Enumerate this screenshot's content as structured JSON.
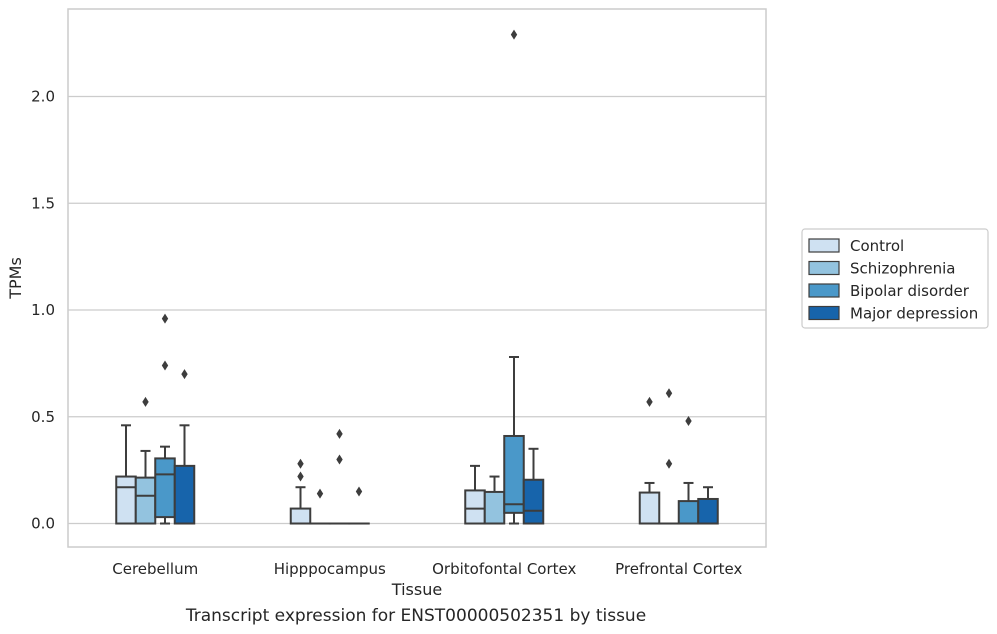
{
  "caption": "Transcript expression for ENST00000502351 by tissue",
  "chart_data": {
    "type": "box",
    "title": "",
    "xlabel": "Tissue",
    "ylabel": "TPMs",
    "ylim": [
      -0.11,
      2.41
    ],
    "yticks": [
      0.0,
      0.5,
      1.0,
      1.5,
      2.0
    ],
    "ytick_labels": [
      "0.0",
      "0.5",
      "1.0",
      "1.5",
      "2.0"
    ],
    "grid": "horizontal",
    "legend": {
      "placement": "right",
      "entries": [
        "Control",
        "Schizophrenia",
        "Bipolar disorder",
        "Major depression"
      ]
    },
    "colors": [
      "#cfe1f2",
      "#93c3df",
      "#4a98c9",
      "#1764ab"
    ],
    "categories": [
      "Cerebellum",
      "Hipppocampus",
      "Orbitofontal Cortex",
      "Prefrontal Cortex"
    ],
    "series": [
      {
        "name": "Control",
        "boxes": [
          {
            "whislo": 0.0,
            "q1": 0.0,
            "med": 0.17,
            "q3": 0.22,
            "whishi": 0.46,
            "fliers": []
          },
          {
            "whislo": 0.0,
            "q1": 0.0,
            "med": 0.0,
            "q3": 0.07,
            "whishi": 0.17,
            "fliers": [
              0.22,
              0.28
            ]
          },
          {
            "whislo": 0.0,
            "q1": 0.0,
            "med": 0.07,
            "q3": 0.155,
            "whishi": 0.27,
            "fliers": []
          },
          {
            "whislo": 0.0,
            "q1": 0.0,
            "med": 0.0,
            "q3": 0.145,
            "whishi": 0.19,
            "fliers": [
              0.57
            ]
          }
        ]
      },
      {
        "name": "Schizophrenia",
        "boxes": [
          {
            "whislo": 0.0,
            "q1": 0.0,
            "med": 0.13,
            "q3": 0.215,
            "whishi": 0.34,
            "fliers": [
              0.57
            ]
          },
          {
            "whislo": 0.0,
            "q1": 0.0,
            "med": 0.0,
            "q3": 0.0,
            "whishi": 0.0,
            "fliers": [
              0.14
            ]
          },
          {
            "whislo": 0.0,
            "q1": 0.0,
            "med": 0.0,
            "q3": 0.148,
            "whishi": 0.22,
            "fliers": []
          },
          {
            "whislo": 0.0,
            "q1": 0.0,
            "med": 0.0,
            "q3": 0.0,
            "whishi": 0.0,
            "fliers": [
              0.28,
              0.61
            ]
          }
        ]
      },
      {
        "name": "Bipolar disorder",
        "boxes": [
          {
            "whislo": 0.0,
            "q1": 0.03,
            "med": 0.23,
            "q3": 0.305,
            "whishi": 0.36,
            "fliers": [
              0.74,
              0.96
            ]
          },
          {
            "whislo": 0.0,
            "q1": 0.0,
            "med": 0.0,
            "q3": 0.0,
            "whishi": 0.0,
            "fliers": [
              0.3,
              0.42
            ]
          },
          {
            "whislo": 0.0,
            "q1": 0.05,
            "med": 0.09,
            "q3": 0.41,
            "whishi": 0.78,
            "fliers": [
              2.29
            ]
          },
          {
            "whislo": 0.0,
            "q1": 0.0,
            "med": 0.0,
            "q3": 0.105,
            "whishi": 0.19,
            "fliers": [
              0.48
            ]
          }
        ]
      },
      {
        "name": "Major depression",
        "boxes": [
          {
            "whislo": 0.0,
            "q1": 0.0,
            "med": 0.0,
            "q3": 0.27,
            "whishi": 0.46,
            "fliers": [
              0.7
            ]
          },
          {
            "whislo": 0.0,
            "q1": 0.0,
            "med": 0.0,
            "q3": 0.0,
            "whishi": 0.0,
            "fliers": [
              0.15
            ]
          },
          {
            "whislo": 0.0,
            "q1": 0.0,
            "med": 0.06,
            "q3": 0.205,
            "whishi": 0.35,
            "fliers": []
          },
          {
            "whislo": 0.0,
            "q1": 0.0,
            "med": 0.0,
            "q3": 0.115,
            "whishi": 0.17,
            "fliers": []
          }
        ]
      }
    ]
  }
}
